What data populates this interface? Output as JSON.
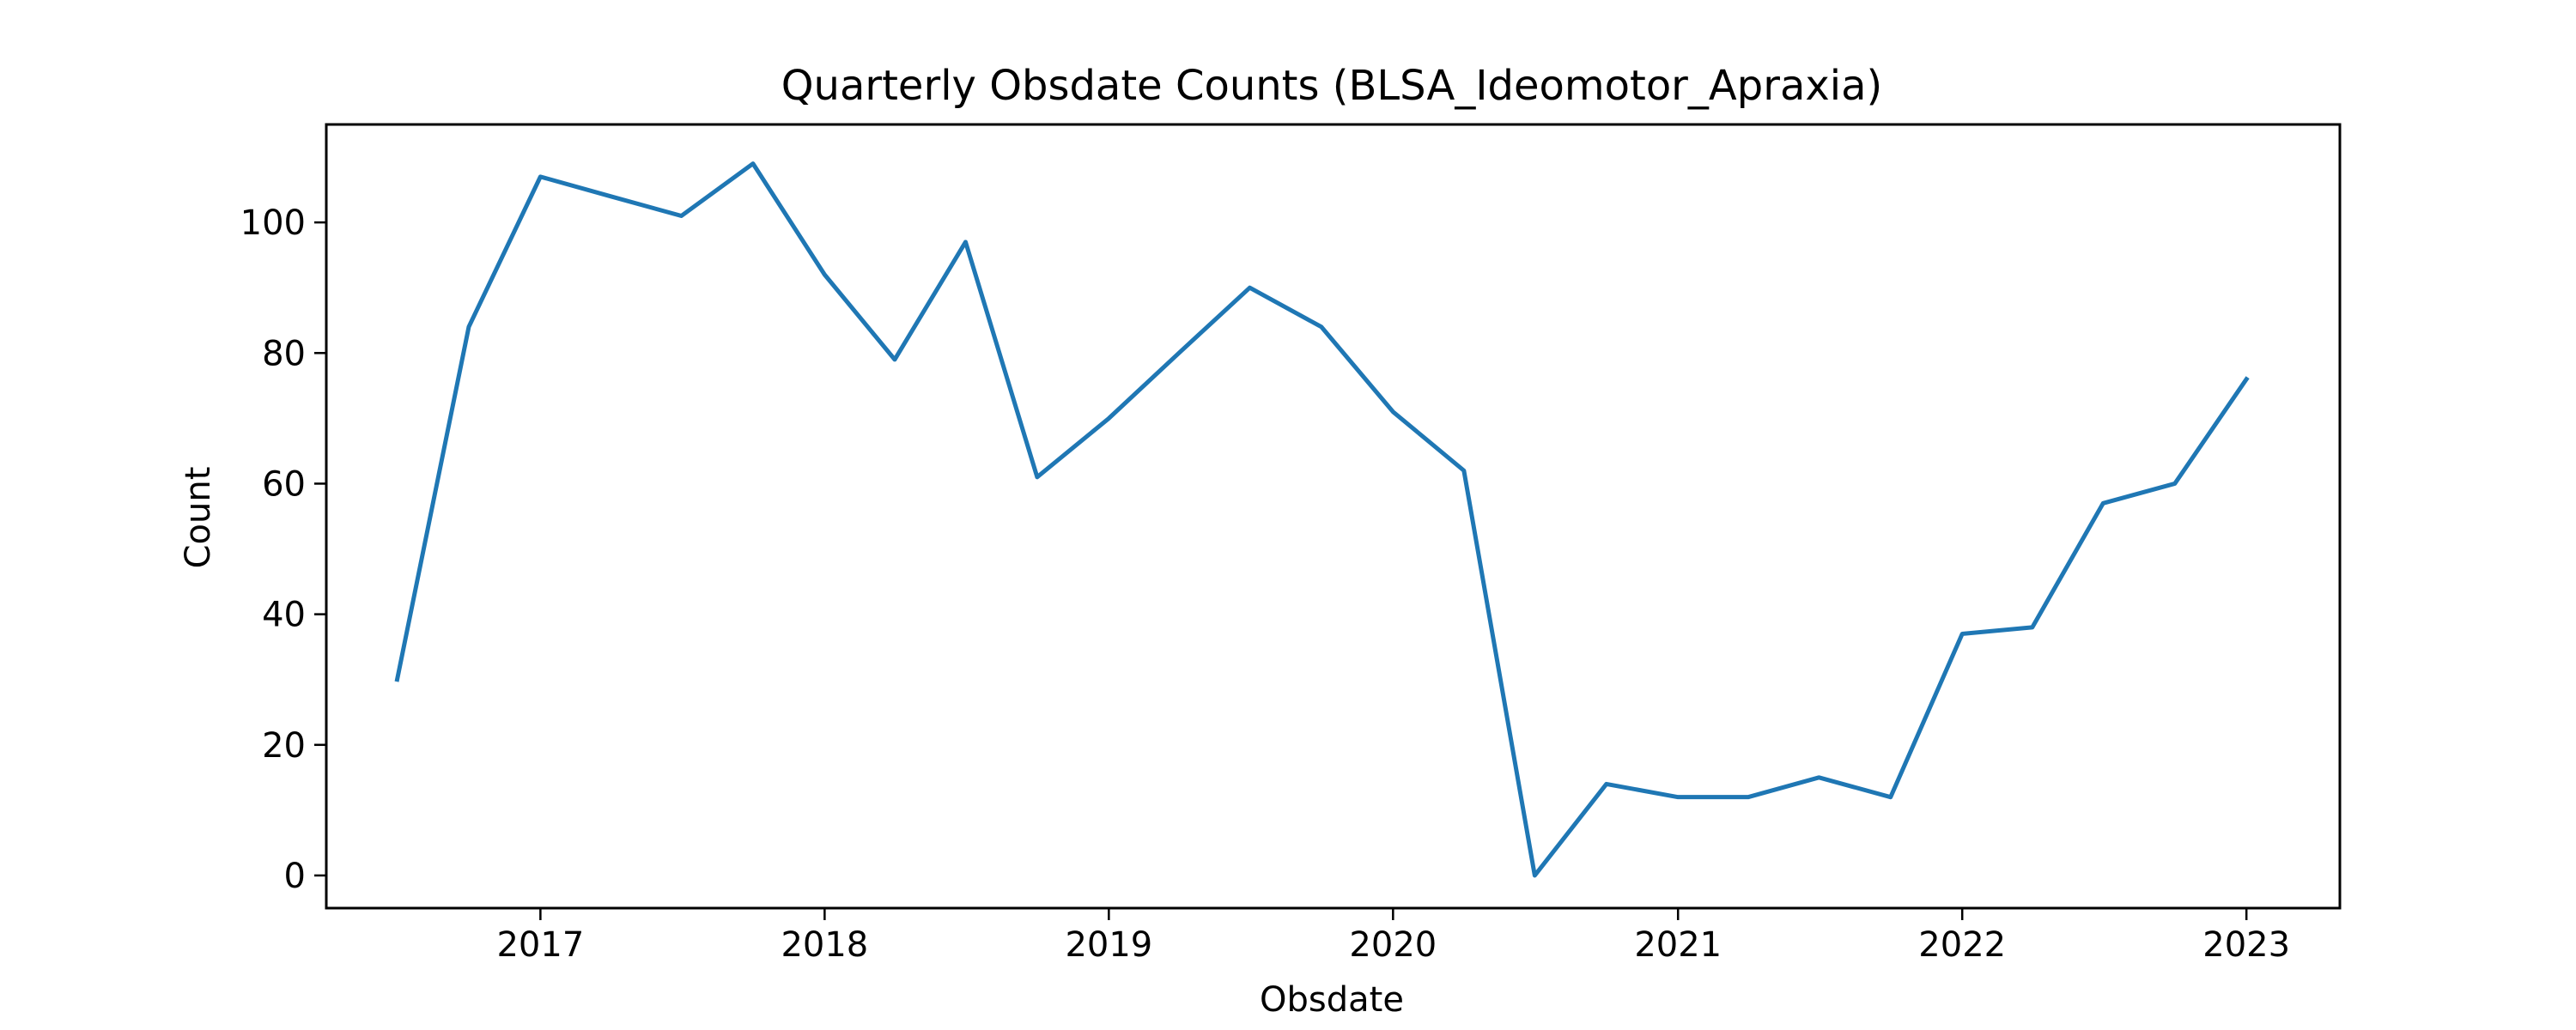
{
  "chart_data": {
    "type": "line",
    "title": "Quarterly Obsdate Counts (BLSA_Ideomotor_Apraxia)",
    "xlabel": "Obsdate",
    "ylabel": "Count",
    "x": [
      "2016-07-01",
      "2016-10-01",
      "2017-01-01",
      "2017-04-01",
      "2017-07-01",
      "2017-10-01",
      "2018-01-01",
      "2018-04-01",
      "2018-07-01",
      "2018-10-01",
      "2019-01-01",
      "2019-04-01",
      "2019-07-01",
      "2019-10-01",
      "2020-01-01",
      "2020-04-01",
      "2020-07-01",
      "2020-10-01",
      "2021-01-01",
      "2021-04-01",
      "2021-07-01",
      "2021-10-01",
      "2022-01-01",
      "2022-04-01",
      "2022-07-01",
      "2022-10-01",
      "2023-01-01"
    ],
    "series": [
      {
        "values": [
          30,
          84,
          107,
          104,
          101,
          109,
          92,
          79,
          97,
          61,
          70,
          80,
          90,
          84,
          71,
          62,
          0,
          14,
          12,
          12,
          15,
          12,
          37,
          38,
          57,
          60,
          76
        ]
      }
    ],
    "xlim": [
      "2016-04-01",
      "2023-05-01"
    ],
    "ylim": [
      -5,
      115
    ],
    "xticks": [
      "2017",
      "2018",
      "2019",
      "2020",
      "2021",
      "2022",
      "2023"
    ],
    "yticks": [
      "0",
      "20",
      "40",
      "60",
      "80",
      "100"
    ],
    "line_color": "#1f77b4",
    "grid": false,
    "legend": false
  }
}
